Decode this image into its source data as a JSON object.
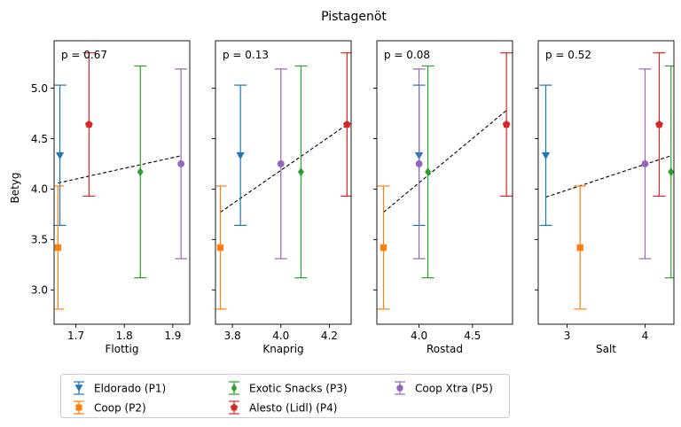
{
  "chart_data": {
    "type": "scatter",
    "title": "Pistagenöt",
    "ylabel": "Betyg",
    "ylim": [
      2.66,
      5.47
    ],
    "yticks": [
      3.0,
      3.5,
      4.0,
      4.5,
      5.0
    ],
    "ytick_labels": [
      "3.0",
      "3.5",
      "4.0",
      "4.5",
      "5.0"
    ],
    "products": [
      {
        "name": "Eldorado (P1)",
        "color": "#1f77b4",
        "marker": "triangle-down",
        "y": 4.33,
        "ylow": 3.64,
        "yhigh": 5.03
      },
      {
        "name": "Coop (P2)",
        "color": "#ff7f0e",
        "marker": "square",
        "y": 3.42,
        "ylow": 2.81,
        "yhigh": 4.03
      },
      {
        "name": "Exotic Snacks (P3)",
        "color": "#2ca02c",
        "marker": "diamond",
        "y": 4.17,
        "ylow": 3.12,
        "yhigh": 5.22
      },
      {
        "name": "Alesto (Lidl) (P4)",
        "color": "#d62728",
        "marker": "pentagon",
        "y": 4.64,
        "ylow": 3.93,
        "yhigh": 5.35
      },
      {
        "name": "Coop Xtra (P5)",
        "color": "#9467bd",
        "marker": "circle",
        "y": 4.25,
        "ylow": 3.31,
        "yhigh": 5.19
      }
    ],
    "panels": [
      {
        "xlabel": "Flottig",
        "pvalue": "p = 0.67",
        "xlim": [
          1.655,
          1.935
        ],
        "xticks": [
          1.7,
          1.8,
          1.9
        ],
        "xtick_labels": [
          "1.7",
          "1.8",
          "1.9"
        ],
        "x": [
          1.667,
          1.663,
          1.833,
          1.727,
          1.917
        ],
        "fit": {
          "x1": 1.663,
          "y1": 4.06,
          "x2": 1.917,
          "y2": 4.33
        }
      },
      {
        "xlabel": "Knaprig",
        "pvalue": "p = 0.13",
        "xlim": [
          3.73,
          4.29
        ],
        "xticks": [
          3.8,
          4.0,
          4.2
        ],
        "xtick_labels": [
          "3.8",
          "4.0",
          "4.2"
        ],
        "x": [
          3.833,
          3.75,
          4.083,
          4.273,
          4.0
        ],
        "fit": {
          "x1": 3.75,
          "y1": 3.77,
          "x2": 4.273,
          "y2": 4.64
        }
      },
      {
        "xlabel": "Rostad",
        "pvalue": "p = 0.08",
        "xlim": [
          3.605,
          4.875
        ],
        "xticks": [
          4.0,
          4.5
        ],
        "xtick_labels": [
          "4.0",
          "4.5"
        ],
        "x": [
          4.0,
          3.667,
          4.083,
          4.818,
          4.0
        ],
        "fit": {
          "x1": 3.667,
          "y1": 3.77,
          "x2": 4.818,
          "y2": 4.78
        }
      },
      {
        "xlabel": "Salt",
        "pvalue": "p = 0.52",
        "xlim": [
          2.63,
          4.37
        ],
        "xticks": [
          3,
          4
        ],
        "xtick_labels": [
          "3",
          "4"
        ],
        "x": [
          2.727,
          3.167,
          4.333,
          4.182,
          4.0
        ],
        "fit": {
          "x1": 2.727,
          "y1": 3.92,
          "x2": 4.333,
          "y2": 4.33
        }
      }
    ],
    "legend": {
      "position": "bottom",
      "ncol": 3
    }
  }
}
